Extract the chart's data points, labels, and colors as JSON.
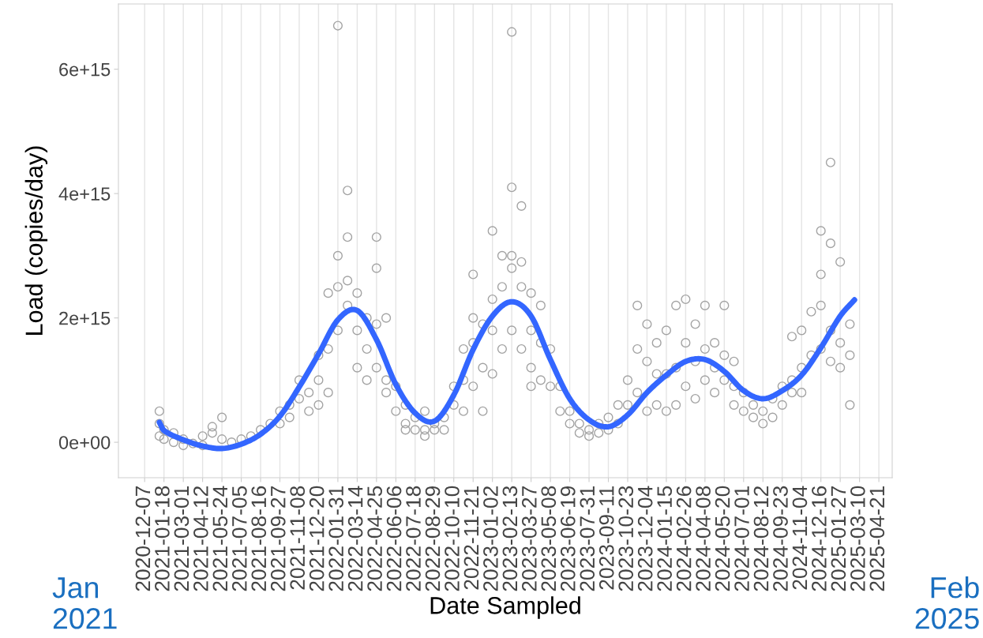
{
  "chart_data": {
    "type": "scatter",
    "xlabel": "Date Sampled",
    "ylabel": "Load (copies/day)",
    "annotations": [
      "Jan\n2021",
      "Feb\n2025"
    ],
    "xlim": [
      "2020-10-11",
      "2025-05-20"
    ],
    "xticks": [
      "2020-12-07",
      "2021-01-18",
      "2021-03-01",
      "2021-04-12",
      "2021-05-24",
      "2021-07-05",
      "2021-08-16",
      "2021-09-27",
      "2021-11-08",
      "2021-12-20",
      "2022-01-31",
      "2022-03-14",
      "2022-04-25",
      "2022-06-06",
      "2022-07-18",
      "2022-08-29",
      "2022-10-10",
      "2022-11-21",
      "2023-01-02",
      "2023-02-13",
      "2023-03-27",
      "2023-05-08",
      "2023-06-19",
      "2023-07-31",
      "2023-09-11",
      "2023-10-23",
      "2023-12-04",
      "2024-01-15",
      "2024-02-26",
      "2024-04-08",
      "2024-05-20",
      "2024-07-01",
      "2024-08-12",
      "2024-09-23",
      "2024-11-04",
      "2024-12-16",
      "2025-01-27",
      "2025-03-10",
      "2025-04-21"
    ],
    "ylim": [
      -570000000000000.0,
      7050000000000000.0
    ],
    "yticks": [
      {
        "value": 0,
        "label": "0e+00"
      },
      {
        "value": 2000000000000000.0,
        "label": "2e+15"
      },
      {
        "value": 4000000000000000.0,
        "label": "4e+15"
      },
      {
        "value": 6000000000000000.0,
        "label": "6e+15"
      }
    ],
    "grid": "x",
    "series": [
      {
        "color": "#a3a3a3",
        "marker": "circle",
        "x": [
          "2021-01-08",
          "2021-01-08",
          "2021-01-08",
          "2021-01-18",
          "2021-01-18",
          "2021-02-08",
          "2021-02-08",
          "2021-03-01",
          "2021-03-01",
          "2021-03-22",
          "2021-04-12",
          "2021-04-12",
          "2021-05-03",
          "2021-05-03",
          "2021-05-24",
          "2021-05-24",
          "2021-06-14",
          "2021-07-05",
          "2021-07-26",
          "2021-08-16",
          "2021-09-06",
          "2021-09-27",
          "2021-09-27",
          "2021-10-18",
          "2021-10-18",
          "2021-11-08",
          "2021-11-08",
          "2021-11-29",
          "2021-11-29",
          "2021-12-20",
          "2021-12-20",
          "2021-12-20",
          "2022-01-10",
          "2022-01-10",
          "2022-01-10",
          "2022-01-31",
          "2022-01-31",
          "2022-01-31",
          "2022-01-31",
          "2022-02-21",
          "2022-02-21",
          "2022-02-21",
          "2022-02-21",
          "2022-03-14",
          "2022-03-14",
          "2022-03-14",
          "2022-04-04",
          "2022-04-04",
          "2022-04-04",
          "2022-04-25",
          "2022-04-25",
          "2022-04-25",
          "2022-04-25",
          "2022-05-16",
          "2022-05-16",
          "2022-05-16",
          "2022-06-06",
          "2022-06-06",
          "2022-06-27",
          "2022-06-27",
          "2022-06-27",
          "2022-07-18",
          "2022-07-18",
          "2022-08-08",
          "2022-08-08",
          "2022-08-08",
          "2022-08-29",
          "2022-08-29",
          "2022-09-19",
          "2022-09-19",
          "2022-10-10",
          "2022-10-10",
          "2022-10-31",
          "2022-10-31",
          "2022-10-31",
          "2022-11-21",
          "2022-11-21",
          "2022-11-21",
          "2022-11-21",
          "2022-12-12",
          "2022-12-12",
          "2022-12-12",
          "2023-01-02",
          "2023-01-02",
          "2023-01-02",
          "2023-01-02",
          "2023-01-23",
          "2023-01-23",
          "2023-01-23",
          "2023-02-13",
          "2023-02-13",
          "2023-02-13",
          "2023-02-13",
          "2023-02-13",
          "2023-03-06",
          "2023-03-06",
          "2023-03-06",
          "2023-03-06",
          "2023-03-27",
          "2023-03-27",
          "2023-03-27",
          "2023-03-27",
          "2023-04-17",
          "2023-04-17",
          "2023-04-17",
          "2023-05-08",
          "2023-05-08",
          "2023-05-29",
          "2023-05-29",
          "2023-06-19",
          "2023-06-19",
          "2023-07-10",
          "2023-07-10",
          "2023-07-31",
          "2023-07-31",
          "2023-08-21",
          "2023-08-21",
          "2023-09-11",
          "2023-09-11",
          "2023-10-02",
          "2023-10-02",
          "2023-10-23",
          "2023-10-23",
          "2023-11-13",
          "2023-11-13",
          "2023-11-13",
          "2023-12-04",
          "2023-12-04",
          "2023-12-04",
          "2023-12-25",
          "2023-12-25",
          "2023-12-25",
          "2024-01-15",
          "2024-01-15",
          "2024-01-15",
          "2024-02-05",
          "2024-02-05",
          "2024-02-05",
          "2024-02-26",
          "2024-02-26",
          "2024-02-26",
          "2024-03-18",
          "2024-03-18",
          "2024-03-18",
          "2024-04-08",
          "2024-04-08",
          "2024-04-08",
          "2024-04-29",
          "2024-04-29",
          "2024-04-29",
          "2024-05-20",
          "2024-05-20",
          "2024-05-20",
          "2024-06-10",
          "2024-06-10",
          "2024-06-10",
          "2024-07-01",
          "2024-07-01",
          "2024-07-22",
          "2024-07-22",
          "2024-08-12",
          "2024-08-12",
          "2024-09-02",
          "2024-09-02",
          "2024-09-23",
          "2024-09-23",
          "2024-10-14",
          "2024-10-14",
          "2024-10-14",
          "2024-11-04",
          "2024-11-04",
          "2024-11-04",
          "2024-11-25",
          "2024-11-25",
          "2024-12-16",
          "2024-12-16",
          "2024-12-16",
          "2024-12-16",
          "2025-01-06",
          "2025-01-06",
          "2025-01-06",
          "2025-01-06",
          "2025-01-27",
          "2025-01-27",
          "2025-01-27",
          "2025-02-17",
          "2025-02-17",
          "2025-02-17"
        ],
        "values": [
          100000000000000.0,
          300000000000000.0,
          500000000000000.0,
          50000000000000.0,
          200000000000000.0,
          0,
          150000000000000.0,
          -50000000000000.0,
          50000000000000.0,
          -20000000000000.0,
          -50000000000000.0,
          100000000000000.0,
          150000000000000.0,
          250000000000000.0,
          400000000000000.0,
          50000000000000.0,
          0,
          50000000000000.0,
          100000000000000.0,
          200000000000000.0,
          300000000000000.0,
          300000000000000.0,
          500000000000000.0,
          600000000000000.0,
          400000000000000.0,
          700000000000000.0,
          1000000000000000.0,
          800000000000000.0,
          500000000000000.0,
          1000000000000000.0,
          600000000000000.0,
          1400000000000000.0,
          1500000000000000.0,
          2400000000000000.0,
          800000000000000.0,
          2500000000000000.0,
          3000000000000000.0,
          1800000000000000.0,
          6700000000000000.0,
          4050000000000000.0,
          3300000000000000.0,
          2600000000000000.0,
          2200000000000000.0,
          2400000000000000.0,
          1800000000000000.0,
          1200000000000000.0,
          1500000000000000.0,
          2000000000000000.0,
          1000000000000000.0,
          3300000000000000.0,
          2800000000000000.0,
          1200000000000000.0,
          1900000000000000.0,
          2000000000000000.0,
          1000000000000000.0,
          800000000000000.0,
          900000000000000.0,
          500000000000000.0,
          300000000000000.0,
          600000000000000.0,
          200000000000000.0,
          200000000000000.0,
          400000000000000.0,
          200000000000000.0,
          500000000000000.0,
          100000000000000.0,
          200000000000000.0,
          300000000000000.0,
          400000000000000.0,
          200000000000000.0,
          600000000000000.0,
          900000000000000.0,
          1000000000000000.0,
          1500000000000000.0,
          500000000000000.0,
          2000000000000000.0,
          1600000000000000.0,
          900000000000000.0,
          2700000000000000.0,
          1200000000000000.0,
          1900000000000000.0,
          500000000000000.0,
          2300000000000000.0,
          1800000000000000.0,
          1100000000000000.0,
          3400000000000000.0,
          3000000000000000.0,
          1500000000000000.0,
          2500000000000000.0,
          4100000000000000.0,
          3000000000000000.0,
          2800000000000000.0,
          1800000000000000.0,
          6600000000000000.0,
          2500000000000000.0,
          3800000000000000.0,
          1500000000000000.0,
          2900000000000000.0,
          2400000000000000.0,
          1800000000000000.0,
          1200000000000000.0,
          900000000000000.0,
          2200000000000000.0,
          1600000000000000.0,
          1000000000000000.0,
          1500000000000000.0,
          900000000000000.0,
          900000000000000.0,
          500000000000000.0,
          500000000000000.0,
          300000000000000.0,
          300000000000000.0,
          150000000000000.0,
          200000000000000.0,
          100000000000000.0,
          150000000000000.0,
          300000000000000.0,
          200000000000000.0,
          400000000000000.0,
          600000000000000.0,
          300000000000000.0,
          1000000000000000.0,
          600000000000000.0,
          2200000000000000.0,
          1500000000000000.0,
          800000000000000.0,
          1900000000000000.0,
          1300000000000000.0,
          500000000000000.0,
          1100000000000000.0,
          600000000000000.0,
          1600000000000000.0,
          500000000000000.0,
          1100000000000000.0,
          1800000000000000.0,
          2200000000000000.0,
          1200000000000000.0,
          600000000000000.0,
          2300000000000000.0,
          1600000000000000.0,
          900000000000000.0,
          1900000000000000.0,
          1300000000000000.0,
          700000000000000.0,
          2200000000000000.0,
          1500000000000000.0,
          1000000000000000.0,
          1600000000000000.0,
          1200000000000000.0,
          800000000000000.0,
          2200000000000000.0,
          1400000000000000.0,
          1000000000000000.0,
          1300000000000000.0,
          900000000000000.0,
          600000000000000.0,
          500000000000000.0,
          800000000000000.0,
          400000000000000.0,
          600000000000000.0,
          300000000000000.0,
          500000000000000.0,
          400000000000000.0,
          700000000000000.0,
          600000000000000.0,
          900000000000000.0,
          1700000000000000.0,
          1000000000000000.0,
          800000000000000.0,
          1800000000000000.0,
          1200000000000000.0,
          800000000000000.0,
          2100000000000000.0,
          1400000000000000.0,
          2200000000000000.0,
          3400000000000000.0,
          1500000000000000.0,
          2700000000000000.0,
          4500000000000000.0,
          3200000000000000.0,
          1800000000000000.0,
          1300000000000000.0,
          2900000000000000.0,
          1600000000000000.0,
          1200000000000000.0,
          1900000000000000.0,
          600000000000000.0,
          1400000000000000.0
        ]
      },
      {
        "type": "line",
        "color": "#3366ff",
        "marker": "none",
        "line_style": "solid",
        "x": [
          "2021-01-08",
          "2021-01-18",
          "2021-03-01",
          "2021-04-12",
          "2021-05-24",
          "2021-07-05",
          "2021-08-16",
          "2021-09-27",
          "2021-11-08",
          "2021-12-20",
          "2022-01-31",
          "2022-03-14",
          "2022-04-25",
          "2022-06-06",
          "2022-07-18",
          "2022-08-29",
          "2022-10-10",
          "2022-11-21",
          "2023-01-02",
          "2023-02-13",
          "2023-03-27",
          "2023-05-08",
          "2023-06-19",
          "2023-07-31",
          "2023-09-11",
          "2023-10-23",
          "2023-12-04",
          "2024-01-15",
          "2024-02-26",
          "2024-04-08",
          "2024-05-20",
          "2024-07-01",
          "2024-08-12",
          "2024-09-23",
          "2024-11-04",
          "2024-12-16",
          "2025-01-27",
          "2025-02-27"
        ],
        "values": [
          320000000000000.0,
          190000000000000.0,
          40000000000000.0,
          -60000000000000.0,
          -100000000000000.0,
          -30000000000000.0,
          130000000000000.0,
          420000000000000.0,
          890000000000000.0,
          1420000000000000.0,
          1970000000000000.0,
          2120000000000000.0,
          1650000000000000.0,
          930000000000000.0,
          470000000000000.0,
          340000000000000.0,
          760000000000000.0,
          1490000000000000.0,
          2030000000000000.0,
          2260000000000000.0,
          2030000000000000.0,
          1330000000000000.0,
          700000000000000.0,
          360000000000000.0,
          250000000000000.0,
          440000000000000.0,
          800000000000000.0,
          1080000000000000.0,
          1300000000000000.0,
          1330000000000000.0,
          1140000000000000.0,
          830000000000000.0,
          700000000000000.0,
          830000000000000.0,
          1080000000000000.0,
          1520000000000000.0,
          2030000000000000.0,
          2290000000000000.0
        ]
      }
    ]
  }
}
